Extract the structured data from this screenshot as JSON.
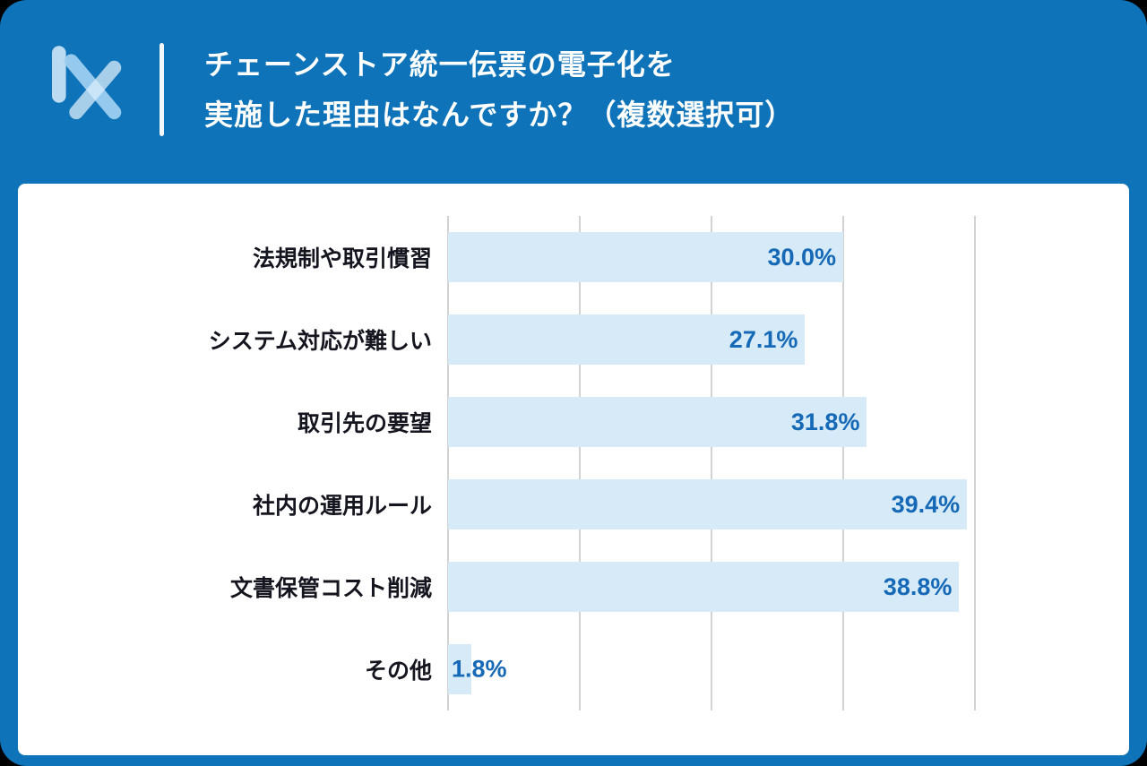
{
  "header": {
    "title_lines": [
      "チェーンストア統一伝票の電子化を",
      "実施した理由はなんですか？（複数選択可）"
    ]
  },
  "chart_data": {
    "type": "bar",
    "orientation": "horizontal",
    "title": "チェーンストア統一伝票の電子化を実施した理由はなんですか？（複数選択可）",
    "categories": [
      "法規制や取引慣習",
      "システム対応が難しい",
      "取引先の要望",
      "社内の運用ルール",
      "文書保管コスト削減",
      "その他"
    ],
    "values": [
      30.0,
      27.1,
      31.8,
      39.4,
      38.8,
      1.8
    ],
    "value_labels": [
      "30.0%",
      "27.1%",
      "31.8%",
      "39.4%",
      "38.8%",
      "1.8%"
    ],
    "xlabel": "",
    "ylabel": "",
    "xlim": [
      0,
      40
    ],
    "gridlines": [
      0,
      10,
      20,
      30,
      40
    ],
    "grid": "vertical",
    "legend": "none",
    "colors": {
      "page_background": "#0e73b8",
      "card_background": "#ffffff",
      "bar_color": "#d6eaf8",
      "value_label_color": "#1569b6",
      "category_label_color": "#15151f",
      "gridline_color": "#d2d2d2",
      "title_color": "#ffffff",
      "logo_color": "#a9d4f1"
    }
  }
}
